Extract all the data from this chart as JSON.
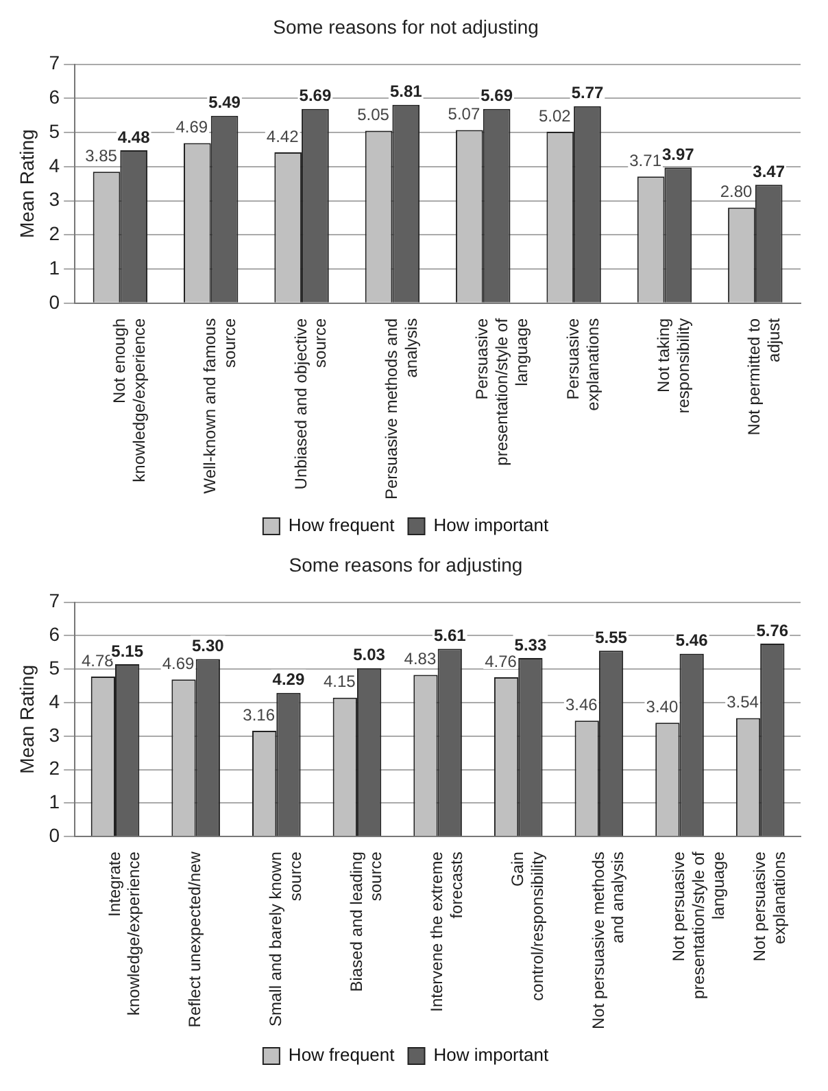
{
  "chart_data": [
    {
      "type": "bar",
      "title": "Some reasons for not adjusting",
      "ylabel": "Mean Rating",
      "categories": [
        "Not enough knowledge/experience",
        "Well-known and famous source",
        "Unbiased and objective source",
        "Persuasive methods and analysis",
        "Persuasive presentation/style of language",
        "Persuasive explanations",
        "Not taking responsibility",
        "Not permitted to adjust"
      ],
      "series": [
        {
          "name": "How frequent",
          "color": "#c0c0c0",
          "values": [
            3.85,
            4.69,
            4.42,
            5.05,
            5.07,
            5.02,
            3.71,
            2.8
          ],
          "value_labels": [
            "3.85",
            "4.69",
            "4.42",
            "5.05",
            "5.07",
            "5.02",
            "3.71",
            "2.80"
          ]
        },
        {
          "name": "How important",
          "color": "#606060",
          "values": [
            4.48,
            5.49,
            5.69,
            5.81,
            5.69,
            5.77,
            3.97,
            3.47
          ],
          "value_labels": [
            "4.48",
            "5.49",
            "5.69",
            "5.81",
            "5.69",
            "5.77",
            "3.97",
            "3.47"
          ]
        }
      ],
      "ylim": [
        0,
        7
      ],
      "yticks": [
        0,
        1,
        2,
        3,
        4,
        5,
        6,
        7
      ],
      "grid": "y",
      "legend": "bottom"
    },
    {
      "type": "bar",
      "title": "Some reasons for adjusting",
      "ylabel": "Mean Rating",
      "categories": [
        "Integrate knowledge/experience",
        "Reflect unexpected/new",
        "Small and barely known source",
        "Biased and leading source",
        "Intervene the extreme forecasts",
        "Gain control/responsibility",
        "Not persuasive methods and analysis",
        "Not persuasive presentation/style of language",
        "Not persuasive explanations"
      ],
      "series": [
        {
          "name": "How frequent",
          "color": "#c0c0c0",
          "values": [
            4.78,
            4.69,
            3.16,
            4.15,
            4.83,
            4.76,
            3.46,
            3.4,
            3.54
          ],
          "value_labels": [
            "4.78",
            "4.69",
            "3.16",
            "4.15",
            "4.83",
            "4.76",
            "3.46",
            "3.40",
            "3.54"
          ]
        },
        {
          "name": "How important",
          "color": "#606060",
          "values": [
            5.15,
            5.3,
            4.29,
            5.03,
            5.61,
            5.33,
            5.55,
            5.46,
            5.76
          ],
          "value_labels": [
            "5.15",
            "5.30",
            "4.29",
            "5.03",
            "5.61",
            "5.33",
            "5.55",
            "5.46",
            "5.76"
          ]
        }
      ],
      "ylim": [
        0,
        7
      ],
      "yticks": [
        0,
        1,
        2,
        3,
        4,
        5,
        6,
        7
      ],
      "grid": "y",
      "legend": "bottom"
    }
  ]
}
